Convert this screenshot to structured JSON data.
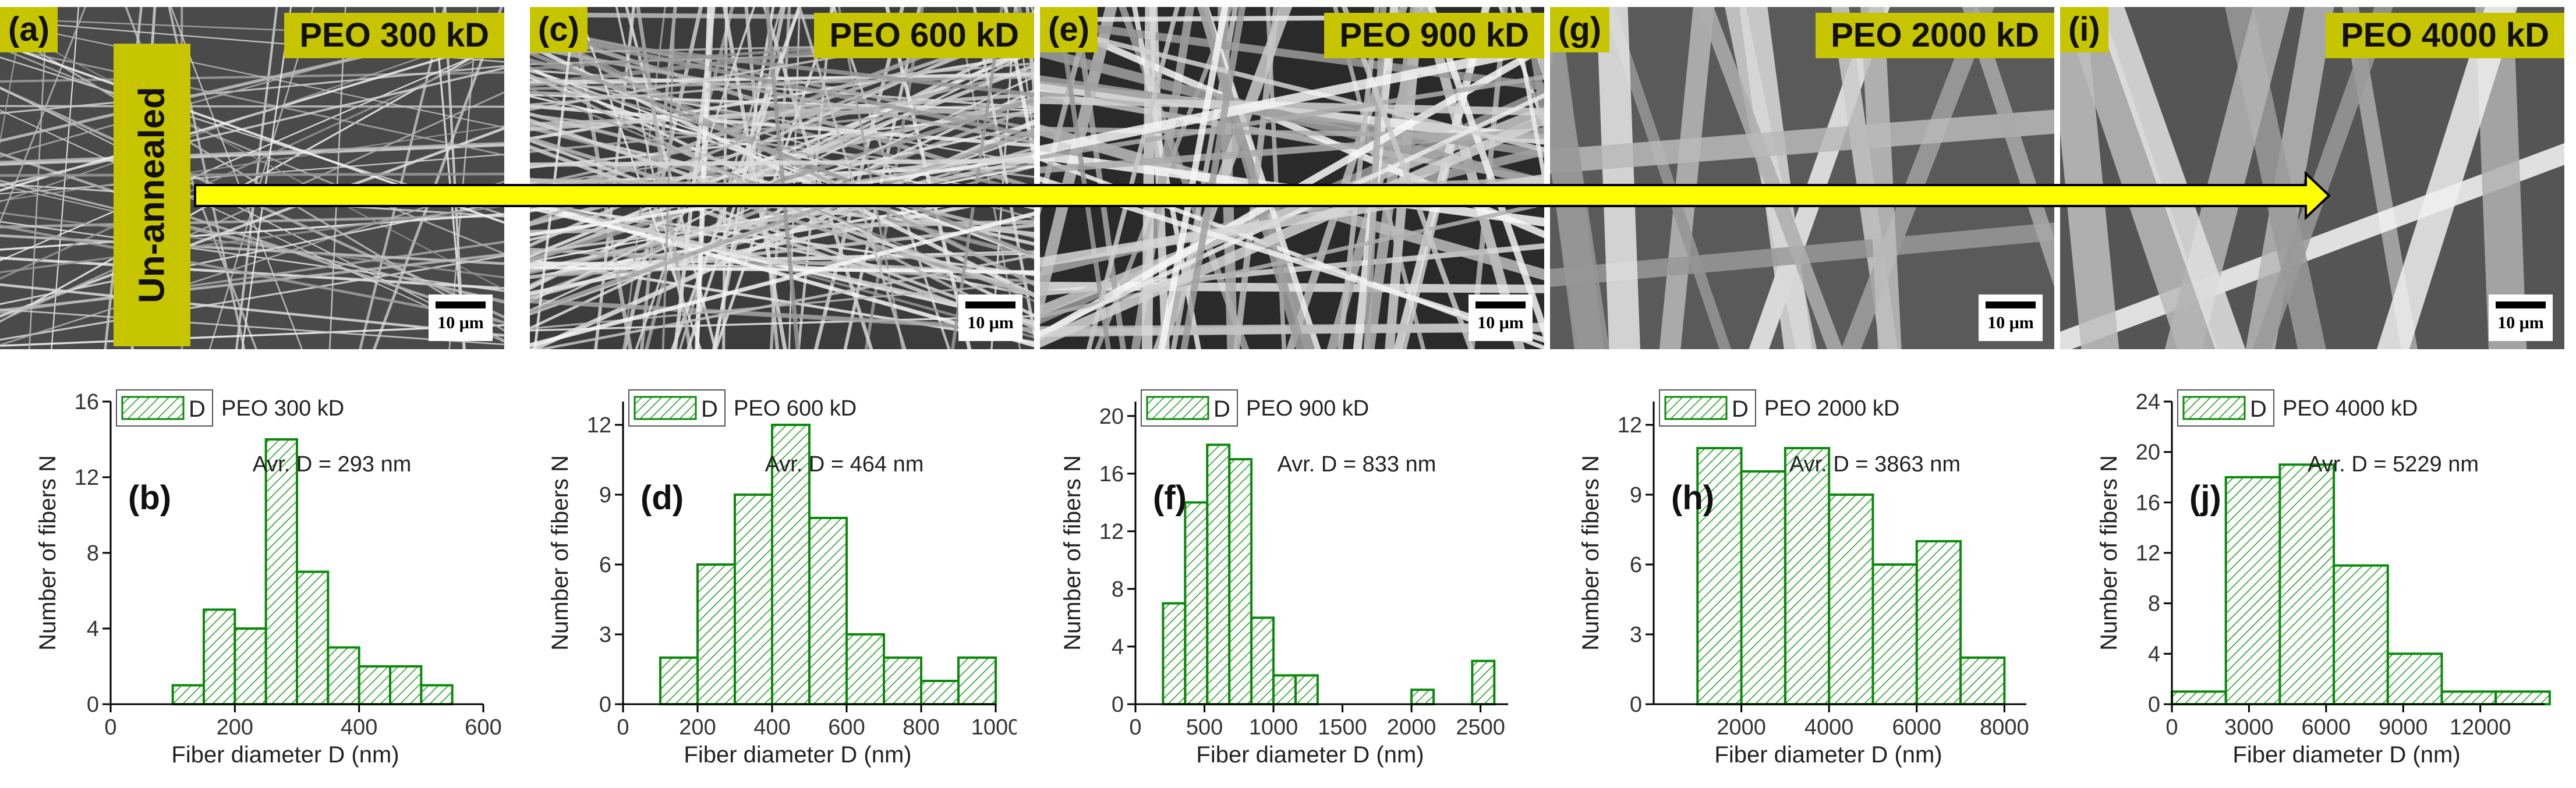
{
  "colors": {
    "bar_stroke": "#0a8a0a",
    "hatch": "#1e9b1e",
    "label_bg": "#c7c400",
    "arrow_fill": "#ffff00"
  },
  "annealing_label": "Un-annealed",
  "panels": [
    {
      "letter": "(a)",
      "title": "PEO 300 kD",
      "scale": "10 μm"
    },
    {
      "letter": "(c)",
      "title": "PEO 600 kD",
      "scale": "10 μm"
    },
    {
      "letter": "(e)",
      "title": "PEO 900 kD",
      "scale": "10  μm"
    },
    {
      "letter": "(g)",
      "title": "PEO 2000 kD",
      "scale": "10 μm"
    },
    {
      "letter": "(i)",
      "title": "PEO 4000 kD",
      "scale": "10 μm"
    }
  ],
  "chart_data": [
    {
      "type": "bar",
      "panel": "(b)",
      "legend_symbol": "D",
      "legend": "PEO 300 kD",
      "annotation": "Avr. D = 293 nm",
      "xlabel": "Fiber diameter D (nm)",
      "ylabel": "Number of fibers N",
      "xlim": [
        0,
        600
      ],
      "ylim": [
        0,
        16
      ],
      "xticks": [
        0,
        200,
        400,
        600
      ],
      "yticks": [
        0,
        4,
        8,
        12,
        16
      ],
      "bin_width": 50,
      "bin_starts": [
        100,
        150,
        200,
        250,
        300,
        350,
        400,
        450,
        500
      ],
      "values": [
        1,
        5,
        4,
        14,
        7,
        3,
        2,
        2,
        1
      ]
    },
    {
      "type": "bar",
      "panel": "(d)",
      "legend_symbol": "D",
      "legend": "PEO 600 kD",
      "annotation": "Avr. D = 464 nm",
      "xlabel": "Fiber diameter D (nm)",
      "ylabel": "Number of fibers N",
      "xlim": [
        0,
        1000
      ],
      "ylim": [
        0,
        13
      ],
      "xticks": [
        0,
        200,
        400,
        600,
        800,
        1000
      ],
      "yticks": [
        0,
        3,
        6,
        9,
        12
      ],
      "bin_width": 100,
      "bin_starts": [
        100,
        200,
        300,
        400,
        500,
        600,
        700,
        800,
        900
      ],
      "values": [
        2,
        6,
        9,
        12,
        8,
        3,
        2,
        1,
        2
      ]
    },
    {
      "type": "bar",
      "panel": "(f)",
      "legend_symbol": "D",
      "legend": "PEO 900 kD",
      "annotation": "Avr. D = 833 nm",
      "xlabel": "Fiber diameter D (nm)",
      "ylabel": "Number of fibers N",
      "xlim": [
        0,
        2700
      ],
      "ylim": [
        0,
        21
      ],
      "xticks": [
        0,
        500,
        1000,
        1500,
        2000,
        2500
      ],
      "yticks": [
        0,
        4,
        8,
        12,
        16,
        20
      ],
      "bin_width": 160,
      "bin_starts": [
        200,
        360,
        520,
        680,
        840,
        1000,
        1160,
        1320,
        2000,
        2440
      ],
      "values": [
        7,
        14,
        18,
        17,
        6,
        2,
        2,
        0,
        1,
        3
      ]
    },
    {
      "type": "bar",
      "panel": "(h)",
      "legend_symbol": "D",
      "legend": "PEO 2000 kD",
      "annotation": "Avr. D = 3863 nm",
      "xlabel": "Fiber diameter D (nm)",
      "ylabel": "Number of fibers N",
      "xlim": [
        0,
        8500
      ],
      "ylim": [
        0,
        13
      ],
      "xticks": [
        2000,
        4000,
        6000,
        8000
      ],
      "yticks": [
        0,
        3,
        6,
        9,
        12
      ],
      "bin_width": 1000,
      "bin_starts": [
        1000,
        2000,
        3000,
        4000,
        5000,
        6000,
        7000
      ],
      "values": [
        11,
        10,
        11,
        9,
        6,
        7,
        2
      ]
    },
    {
      "type": "bar",
      "panel": "(j)",
      "legend_symbol": "D",
      "legend": "PEO 4000 kD",
      "annotation": "Avr. D = 5229 nm",
      "xlabel": "Fiber diameter D (nm)",
      "ylabel": "Number of fibers N",
      "xlim": [
        0,
        14500
      ],
      "ylim": [
        0,
        24
      ],
      "xticks": [
        0,
        3000,
        6000,
        9000,
        12000
      ],
      "yticks": [
        0,
        4,
        8,
        12,
        16,
        20,
        24
      ],
      "bin_width": 2100,
      "bin_starts": [
        0,
        2100,
        4200,
        6300,
        8400,
        10500,
        12600
      ],
      "values": [
        1,
        18,
        19,
        11,
        4,
        1,
        1
      ]
    }
  ]
}
